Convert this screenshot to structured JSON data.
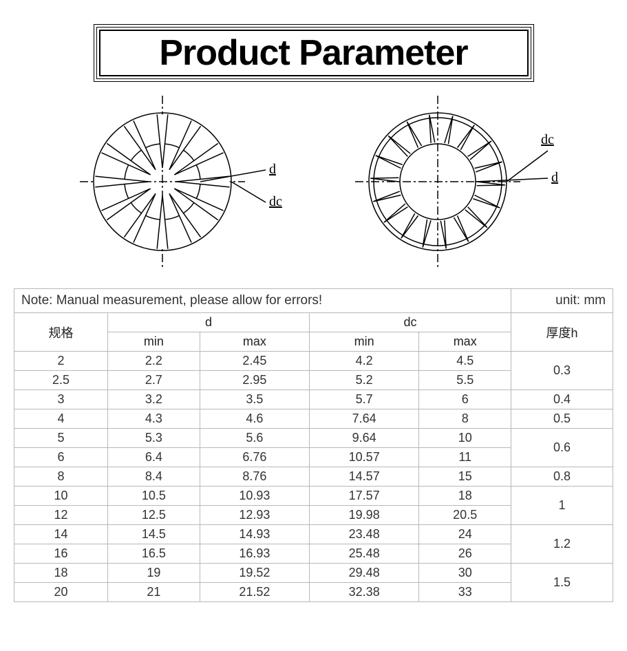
{
  "title": "Product Parameter",
  "note": "Note: Manual measurement, please allow for errors!",
  "unit_label": "unit: mm",
  "diagram_labels": {
    "d": "d",
    "dc": "dc"
  },
  "headers": {
    "spec": "规格",
    "d": "d",
    "dc": "dc",
    "thickness": "厚度h",
    "min": "min",
    "max": "max"
  },
  "rows": [
    {
      "spec": "2",
      "dmin": "2.2",
      "dmax": "2.45",
      "dcmin": "4.2",
      "dcmax": "4.5"
    },
    {
      "spec": "2.5",
      "dmin": "2.7",
      "dmax": "2.95",
      "dcmin": "5.2",
      "dcmax": "5.5"
    },
    {
      "spec": "3",
      "dmin": "3.2",
      "dmax": "3.5",
      "dcmin": "5.7",
      "dcmax": "6"
    },
    {
      "spec": "4",
      "dmin": "4.3",
      "dmax": "4.6",
      "dcmin": "7.64",
      "dcmax": "8"
    },
    {
      "spec": "5",
      "dmin": "5.3",
      "dmax": "5.6",
      "dcmin": "9.64",
      "dcmax": "10"
    },
    {
      "spec": "6",
      "dmin": "6.4",
      "dmax": "6.76",
      "dcmin": "10.57",
      "dcmax": "11"
    },
    {
      "spec": "8",
      "dmin": "8.4",
      "dmax": "8.76",
      "dcmin": "14.57",
      "dcmax": "15"
    },
    {
      "spec": "10",
      "dmin": "10.5",
      "dmax": "10.93",
      "dcmin": "17.57",
      "dcmax": "18"
    },
    {
      "spec": "12",
      "dmin": "12.5",
      "dmax": "12.93",
      "dcmin": "19.98",
      "dcmax": "20.5"
    },
    {
      "spec": "14",
      "dmin": "14.5",
      "dmax": "14.93",
      "dcmin": "23.48",
      "dcmax": "24"
    },
    {
      "spec": "16",
      "dmin": "16.5",
      "dmax": "16.93",
      "dcmin": "25.48",
      "dcmax": "26"
    },
    {
      "spec": "18",
      "dmin": "19",
      "dmax": "19.52",
      "dcmin": "29.48",
      "dcmax": "30"
    },
    {
      "spec": "20",
      "dmin": "21",
      "dmax": "21.52",
      "dcmin": "32.38",
      "dcmax": "33"
    }
  ],
  "thickness_groups": [
    {
      "value": "0.3",
      "span": 2
    },
    {
      "value": "0.4",
      "span": 1
    },
    {
      "value": "0.5",
      "span": 1
    },
    {
      "value": "0.6",
      "span": 2
    },
    {
      "value": "0.8",
      "span": 1
    },
    {
      "value": "1",
      "span": 2
    },
    {
      "value": "1.2",
      "span": 2
    },
    {
      "value": "1.5",
      "span": 2
    }
  ],
  "style": {
    "border_color": "#b8b8b8",
    "text_color": "#333333",
    "title_fontsize": 52,
    "cell_fontsize": 18,
    "note_fontsize": 19,
    "background": "#ffffff",
    "diagram_stroke": "#000000"
  }
}
